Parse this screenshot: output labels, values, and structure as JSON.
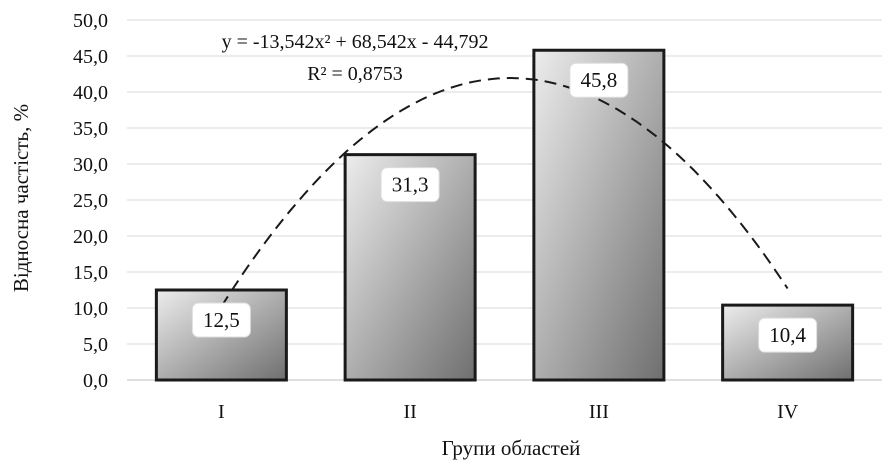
{
  "chart_data": {
    "type": "bar",
    "title": "",
    "xlabel": "Групи областей",
    "ylabel": "Відносна частість, %",
    "categories": [
      "I",
      "II",
      "III",
      "IV"
    ],
    "values": [
      12.5,
      31.3,
      45.8,
      10.4
    ],
    "value_labels": [
      "12,5",
      "31,3",
      "45,8",
      "10,4"
    ],
    "ylim": [
      0,
      50
    ],
    "yticks": [
      0,
      5,
      10,
      15,
      20,
      25,
      30,
      35,
      40,
      45,
      50
    ],
    "ytick_labels": [
      "0,0",
      "5,0",
      "10,0",
      "15,0",
      "20,0",
      "25,0",
      "30,0",
      "35,0",
      "40,0",
      "45,0",
      "50,0"
    ],
    "grid": true,
    "legend": "none",
    "trendline": {
      "type": "polynomial",
      "order": 2,
      "coefficients": [
        -13.542,
        68.542,
        -44.792
      ],
      "equation": "y = -13,542x² + 68,542x - 44,792",
      "r_squared": "R² = 0,8753",
      "style": "dashed"
    },
    "colors": {
      "bar_fill_light": "#ededed",
      "bar_fill_dark": "#6f6f6f",
      "bar_stroke": "#1a1a1a",
      "grid": "#d9d9d9",
      "trendline": "#1a1a1a"
    }
  }
}
